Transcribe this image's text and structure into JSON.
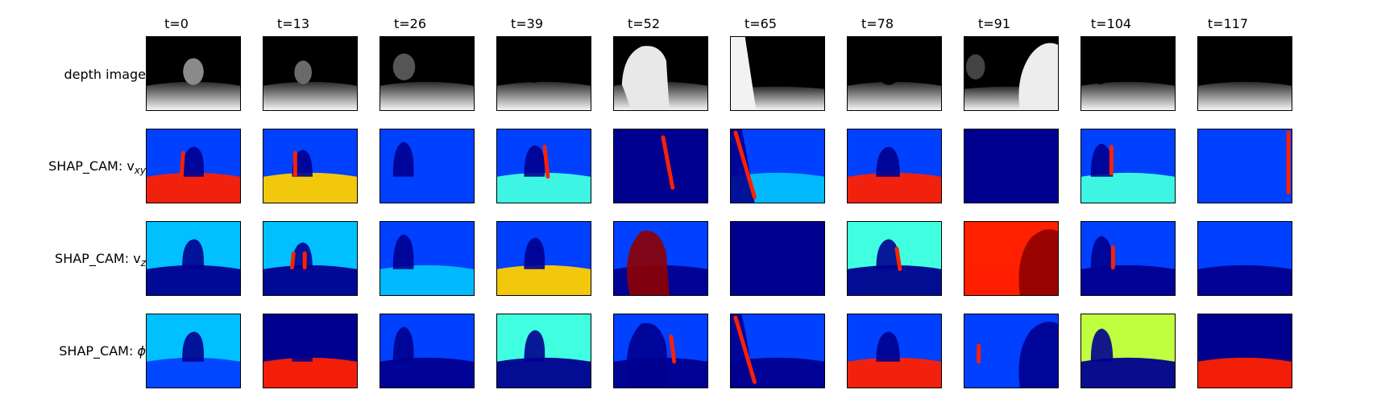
{
  "columns": [
    "t=0",
    "t=13",
    "t=26",
    "t=39",
    "t=52",
    "t=65",
    "t=78",
    "t=91",
    "t=104",
    "t=117"
  ],
  "rows": [
    {
      "label": "depth image",
      "sub": "",
      "kind": "depth"
    },
    {
      "label": "SHAP_CAM: v",
      "sub": "xy",
      "kind": "cam"
    },
    {
      "label": "SHAP_CAM: v",
      "sub": "z",
      "kind": "cam"
    },
    {
      "label": "SHAP_CAM: ",
      "sub": "",
      "symbol": "ϕ",
      "kind": "cam"
    }
  ],
  "colormap": "jet",
  "colors": {
    "jet_dark_blue": "#00008f",
    "jet_blue": "#0040ff",
    "jet_light_blue": "#00c0ff",
    "jet_cyan": "#40ffe0",
    "jet_yellow_green": "#c0ff40",
    "jet_yellow": "#ffd000",
    "jet_red": "#ff2000",
    "jet_dark_red": "#8f0000",
    "depth_black": "#000000",
    "depth_white": "#f5f5f5"
  }
}
